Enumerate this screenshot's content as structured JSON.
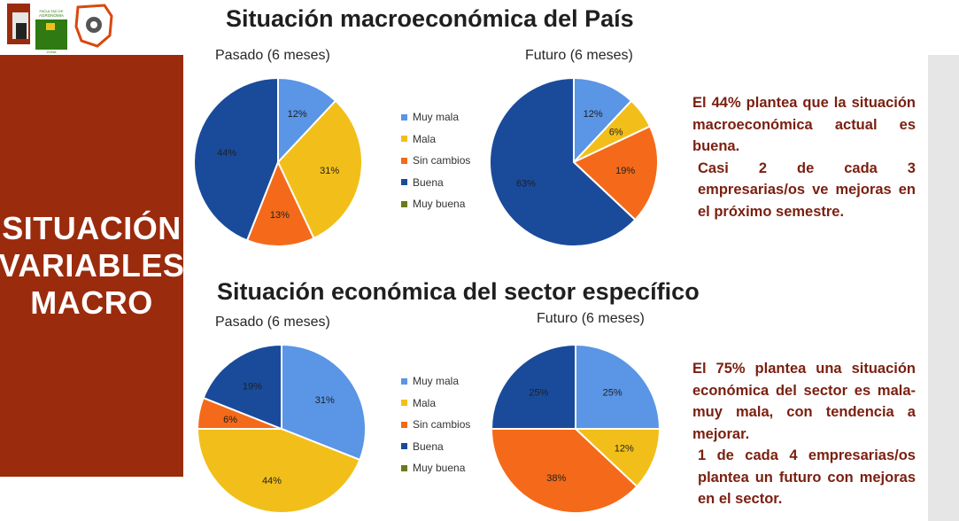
{
  "logos": {
    "text": [
      "AGRONOMIA",
      "FACULTAD DE",
      "ZONA"
    ]
  },
  "sidebar": {
    "title_lines": [
      "SITUACIÓN",
      "VARIABLES",
      "MACRO"
    ]
  },
  "legend_items": [
    {
      "label": "Muy mala",
      "color": "#5a95e6"
    },
    {
      "label": "Mala",
      "color": "#f2bf1a"
    },
    {
      "label": "Sin cambios",
      "color": "#f46a1a"
    },
    {
      "label": "Buena",
      "color": "#1a4b9b"
    },
    {
      "label": "Muy buena",
      "color": "#6b7a1a"
    }
  ],
  "sections": [
    {
      "title": "Situación macroeconómica del País",
      "note_paragraphs": [
        "El 44% plantea que la situación macroeconómica actual es buena.",
        "Casi 2 de cada 3 empresarias/os ve mejoras en el próximo semestre."
      ]
    },
    {
      "title": "Situación económica del sector específico",
      "note_paragraphs": [
        "El 75% plantea una situación económica del sector es mala-muy mala, con tendencia a mejorar.",
        "1 de cada 4 empresarias/os plantea un futuro con mejoras en el sector."
      ]
    }
  ],
  "chart_data": [
    {
      "type": "pie",
      "title": "Pasado (6 meses)",
      "section": "Situación macroeconómica del País",
      "categories": [
        "Muy mala",
        "Mala",
        "Sin cambios",
        "Buena",
        "Muy buena"
      ],
      "values": [
        12,
        31,
        13,
        44,
        0
      ],
      "value_labels": [
        "12%",
        "31%",
        "13%",
        "44%",
        ""
      ],
      "legend": "right"
    },
    {
      "type": "pie",
      "title": "Futuro (6 meses)",
      "section": "Situación macroeconómica del País",
      "categories": [
        "Muy mala",
        "Mala",
        "Sin cambios",
        "Buena",
        "Muy buena"
      ],
      "values": [
        12,
        6,
        19,
        63,
        0
      ],
      "value_labels": [
        "12%",
        "6%",
        "19%",
        "63%",
        ""
      ],
      "legend": "none"
    },
    {
      "type": "pie",
      "title": "Pasado (6 meses)",
      "section": "Situación económica del sector específico",
      "categories": [
        "Muy mala",
        "Mala",
        "Sin cambios",
        "Buena",
        "Muy buena"
      ],
      "values": [
        31,
        44,
        6,
        19,
        0
      ],
      "value_labels": [
        "31%",
        "44%",
        "6%",
        "19%",
        ""
      ],
      "legend": "right"
    },
    {
      "type": "pie",
      "title": "Futuro (6 meses)",
      "section": "Situación económica del sector específico",
      "categories": [
        "Muy mala",
        "Mala",
        "Sin cambios",
        "Buena",
        "Muy buena"
      ],
      "values": [
        25,
        12,
        38,
        25,
        0
      ],
      "value_labels": [
        "25%",
        "12%",
        "38%",
        "25%",
        ""
      ],
      "legend": "none"
    }
  ]
}
